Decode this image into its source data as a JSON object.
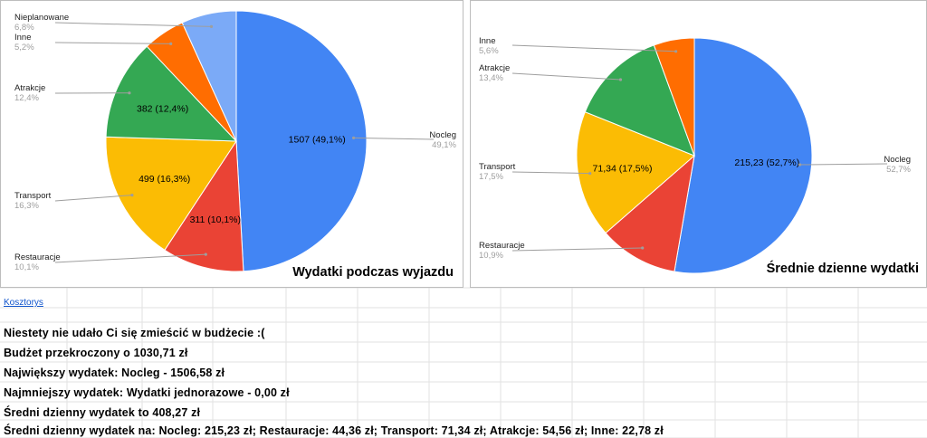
{
  "sheet_link": "Kosztorys",
  "info_rows": [
    "Niestety nie udało Ci się zmieścić w budżecie :(",
    "Budżet przekroczony o 1030,71 zł",
    "Największy wydatek: Nocleg - 1506,58 zł",
    "Najmniejszy wydatek: Wydatki jednorazowe - 0,00 zł",
    "Średni dzienny wydatek to 408,27 zł",
    "Średni dzienny wydatek na: Nocleg: 215,23 zł; Restauracje: 44,36 zł; Transport: 71,34 zł; Atrakcje: 54,56 zł; Inne: 22,78 zł"
  ],
  "chart_data": [
    {
      "type": "pie",
      "title": "Wydatki podczas wyjazdu",
      "legend": "labels outside slices",
      "slices": [
        {
          "name": "Nocleg",
          "value": 1507,
          "percent": "49,1%",
          "data_label": "1507 (49,1%)",
          "color": "#4285f4"
        },
        {
          "name": "Restauracje",
          "value": 311,
          "percent": "10,1%",
          "data_label": "311 (10,1%)",
          "color": "#ea4335"
        },
        {
          "name": "Transport",
          "value": 499,
          "percent": "16,3%",
          "data_label": "499 (16,3%)",
          "color": "#fbbc04"
        },
        {
          "name": "Atrakcje",
          "value": 382,
          "percent": "12,4%",
          "data_label": "382 (12,4%)",
          "color": "#34a853"
        },
        {
          "name": "Inne",
          "value": 160,
          "percent": "5,2%",
          "data_label": "",
          "color": "#ff6d01"
        },
        {
          "name": "Nieplanowane",
          "value": 209,
          "percent": "6,8%",
          "data_label": "",
          "color": "#7baaf7"
        }
      ]
    },
    {
      "type": "pie",
      "title": "Średnie dzienne wydatki",
      "legend": "labels outside slices",
      "slices": [
        {
          "name": "Nocleg",
          "value": 215.23,
          "percent": "52,7%",
          "data_label": "215,23 (52,7%)",
          "color": "#4285f4"
        },
        {
          "name": "Restauracje",
          "value": 44.36,
          "percent": "10,9%",
          "data_label": "",
          "color": "#ea4335"
        },
        {
          "name": "Transport",
          "value": 71.34,
          "percent": "17,5%",
          "data_label": "71,34 (17,5%)",
          "color": "#fbbc04"
        },
        {
          "name": "Atrakcje",
          "value": 54.56,
          "percent": "13,4%",
          "data_label": "",
          "color": "#34a853"
        },
        {
          "name": "Inne",
          "value": 22.78,
          "percent": "5,6%",
          "data_label": "",
          "color": "#ff6d01"
        }
      ]
    }
  ]
}
